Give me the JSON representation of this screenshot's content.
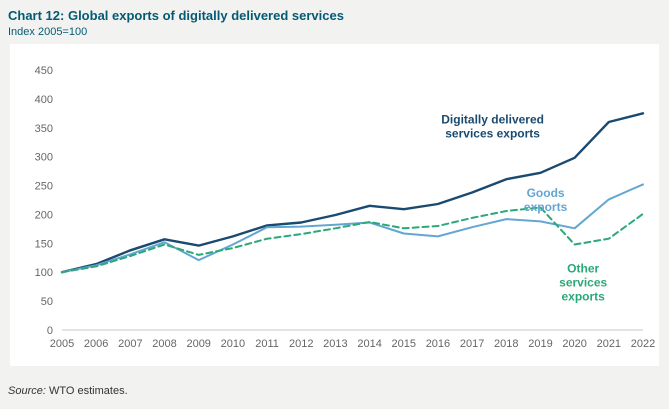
{
  "header": {
    "title": "Chart 12: Global exports of digitally delivered services",
    "subtitle": "Index 2005=100"
  },
  "footer": {
    "source_label": "Source:",
    "source_text": " WTO estimates."
  },
  "colors": {
    "title": "#045a74",
    "axis_text": "#666666",
    "axis_line": "#c9c9c9",
    "digitally_delivered": "#1b4a70",
    "goods": "#63a6d2",
    "other_services": "#2ba878"
  },
  "chart_data": {
    "type": "line",
    "x": [
      2005,
      2006,
      2007,
      2008,
      2009,
      2010,
      2011,
      2012,
      2013,
      2014,
      2015,
      2016,
      2017,
      2018,
      2019,
      2020,
      2021,
      2022
    ],
    "ylim": [
      0,
      450
    ],
    "ytick_step": 50,
    "grid": false,
    "title": "Chart 12: Global exports of digitally delivered services",
    "ylabel": "Index 2005=100",
    "series": [
      {
        "name": "Digitally delivered services exports",
        "color": "#1b4a70",
        "dash": null,
        "width": 2.4,
        "values": [
          100,
          114,
          138,
          157,
          146,
          162,
          181,
          186,
          199,
          215,
          209,
          218,
          238,
          261,
          272,
          298,
          360,
          375
        ]
      },
      {
        "name": "Goods exports",
        "color": "#63a6d2",
        "dash": null,
        "width": 2,
        "values": [
          100,
          112,
          131,
          152,
          121,
          148,
          178,
          179,
          182,
          186,
          167,
          162,
          178,
          192,
          188,
          176,
          226,
          252
        ]
      },
      {
        "name": "Other services exports",
        "color": "#2ba878",
        "dash": "6,4",
        "width": 2,
        "values": [
          100,
          110,
          128,
          148,
          130,
          142,
          158,
          166,
          176,
          187,
          176,
          180,
          194,
          206,
          212,
          148,
          158,
          201
        ]
      }
    ],
    "annotations": [
      {
        "lines": [
          "Digitally delivered",
          "services exports"
        ],
        "x": 2017.6,
        "y": 352,
        "color": "#1b4a70"
      },
      {
        "lines": [
          "Goods",
          "exports"
        ],
        "x": 2019.15,
        "y": 225,
        "color": "#63a6d2"
      },
      {
        "lines": [
          "Other",
          "services",
          "exports"
        ],
        "x": 2020.25,
        "y": 82,
        "color": "#2ba878"
      }
    ]
  }
}
